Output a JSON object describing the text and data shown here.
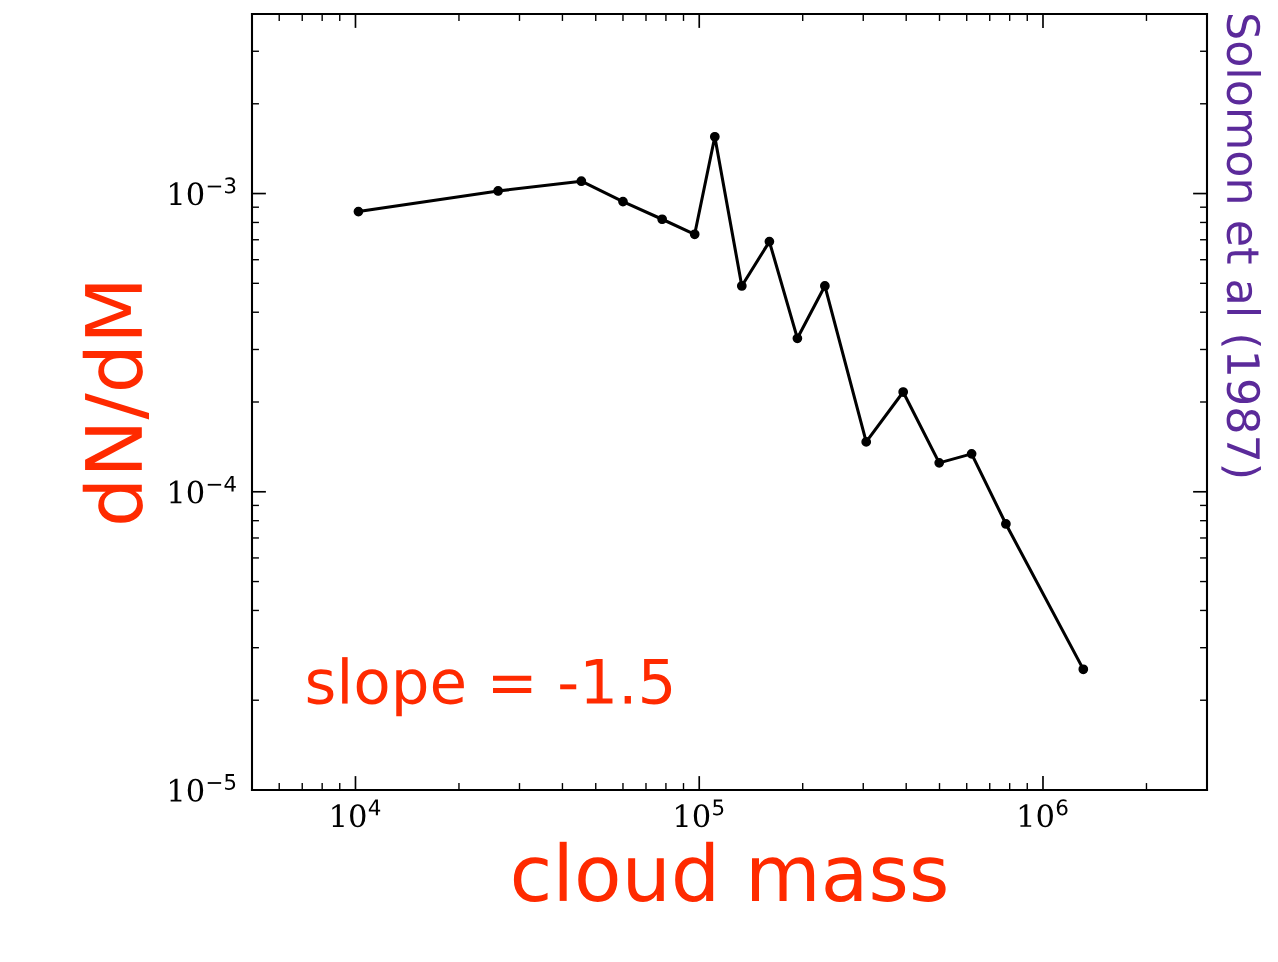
{
  "chart_data": {
    "type": "line",
    "xlabel": "cloud mass",
    "ylabel": "dN/dM",
    "log": "xy",
    "grid": false,
    "legend": false,
    "marker": "circle",
    "line_style": "solid",
    "x": [
      10200,
      26000,
      45400,
      60000,
      78000,
      97000,
      111000,
      133000,
      160000,
      193000,
      232000,
      306000,
      392000,
      499000,
      620000,
      780000,
      1310000
    ],
    "series": [
      {
        "color": "#000000",
        "values": [
          0.00087,
          0.00102,
          0.0011,
          0.00094,
          0.00082,
          0.00073,
          0.00155,
          0.00049,
          0.00069,
          0.000327,
          0.00049,
          0.000147,
          0.000216,
          0.000125,
          0.000134,
          7.8e-05,
          2.54e-05
        ]
      }
    ],
    "xlim": [
      5000,
      3000000
    ],
    "ylim": [
      1e-05,
      0.004
    ],
    "xticks": [
      {
        "value": 10000,
        "label": "10$^{4}$"
      },
      {
        "value": 100000,
        "label": "10$^{5}$"
      },
      {
        "value": 1000000,
        "label": "10$^{6}$"
      }
    ],
    "yticks": [
      {
        "value": 1e-05,
        "label": "10$^{−5}$"
      },
      {
        "value": 0.0001,
        "label": "10$^{−4}$"
      },
      {
        "value": 0.001,
        "label": "10$^{−3}$"
      }
    ],
    "annotations": [
      "slope = -1.5",
      "Solomon et al (1987)"
    ]
  }
}
